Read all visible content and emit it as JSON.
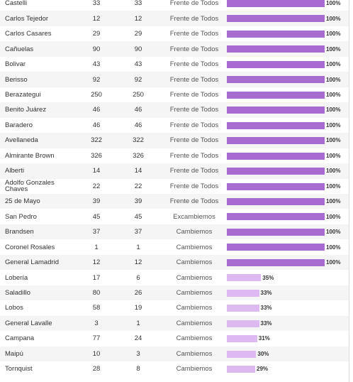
{
  "table": {
    "xlim": [
      0,
      100
    ],
    "rows": [
      {
        "name": "Castelli",
        "a": "33",
        "b": "33",
        "party": "Frente de Todos",
        "pct": 100,
        "pct_label": "100%",
        "color": "#a86bd0"
      },
      {
        "name": "Carlos Tejedor",
        "a": "12",
        "b": "12",
        "party": "Frente de Todos",
        "pct": 100,
        "pct_label": "100%",
        "color": "#a86bd0"
      },
      {
        "name": "Carlos Casares",
        "a": "29",
        "b": "29",
        "party": "Frente de Todos",
        "pct": 100,
        "pct_label": "100%",
        "color": "#a86bd0"
      },
      {
        "name": "Cañuelas",
        "a": "90",
        "b": "90",
        "party": "Frente de Todos",
        "pct": 100,
        "pct_label": "100%",
        "color": "#a86bd0"
      },
      {
        "name": "Bolivar",
        "a": "43",
        "b": "43",
        "party": "Frente de Todos",
        "pct": 100,
        "pct_label": "100%",
        "color": "#a86bd0"
      },
      {
        "name": "Berisso",
        "a": "92",
        "b": "92",
        "party": "Frente de Todos",
        "pct": 100,
        "pct_label": "100%",
        "color": "#a86bd0"
      },
      {
        "name": "Berazategui",
        "a": "250",
        "b": "250",
        "party": "Frente de Todos",
        "pct": 100,
        "pct_label": "100%",
        "color": "#a86bd0"
      },
      {
        "name": "Benito Juárez",
        "a": "46",
        "b": "46",
        "party": "Frente de Todos",
        "pct": 100,
        "pct_label": "100%",
        "color": "#a86bd0"
      },
      {
        "name": "Baradero",
        "a": "46",
        "b": "46",
        "party": "Frente de Todos",
        "pct": 100,
        "pct_label": "100%",
        "color": "#a86bd0"
      },
      {
        "name": "Avellaneda",
        "a": "322",
        "b": "322",
        "party": "Frente de Todos",
        "pct": 100,
        "pct_label": "100%",
        "color": "#a86bd0"
      },
      {
        "name": "Almirante Brown",
        "a": "326",
        "b": "326",
        "party": "Frente de Todos",
        "pct": 100,
        "pct_label": "100%",
        "color": "#a86bd0"
      },
      {
        "name": "Alberti",
        "a": "14",
        "b": "14",
        "party": "Frente de Todos",
        "pct": 100,
        "pct_label": "100%",
        "color": "#a86bd0"
      },
      {
        "name": "Adolfo Gonzales Chaves",
        "a": "22",
        "b": "22",
        "party": "Frente de Todos",
        "pct": 100,
        "pct_label": "100%",
        "color": "#a86bd0"
      },
      {
        "name": "25 de Mayo",
        "a": "39",
        "b": "39",
        "party": "Frente de Todos",
        "pct": 100,
        "pct_label": "100%",
        "color": "#a86bd0"
      },
      {
        "name": "San Pedro",
        "a": "45",
        "b": "45",
        "party": "Excambiemos",
        "pct": 100,
        "pct_label": "100%",
        "color": "#a86bd0"
      },
      {
        "name": "Brandsen",
        "a": "37",
        "b": "37",
        "party": "Cambiemos",
        "pct": 100,
        "pct_label": "100%",
        "color": "#a86bd0"
      },
      {
        "name": "Coronel Rosales",
        "a": "1",
        "b": "1",
        "party": "Cambiemos",
        "pct": 100,
        "pct_label": "100%",
        "color": "#a86bd0"
      },
      {
        "name": "General Lamadrid",
        "a": "12",
        "b": "12",
        "party": "Cambiemos",
        "pct": 100,
        "pct_label": "100%",
        "color": "#a86bd0"
      },
      {
        "name": "Lobería",
        "a": "17",
        "b": "6",
        "party": "Cambiemos",
        "pct": 35,
        "pct_label": "35%",
        "color": "#dcb9f0"
      },
      {
        "name": "Saladillo",
        "a": "80",
        "b": "26",
        "party": "Cambiemos",
        "pct": 33,
        "pct_label": "33%",
        "color": "#dcb9f0"
      },
      {
        "name": "Lobos",
        "a": "58",
        "b": "19",
        "party": "Cambiemos",
        "pct": 33,
        "pct_label": "33%",
        "color": "#dcb9f0"
      },
      {
        "name": "General Lavalle",
        "a": "3",
        "b": "1",
        "party": "Cambiemos",
        "pct": 33,
        "pct_label": "33%",
        "color": "#dcb9f0"
      },
      {
        "name": "Campana",
        "a": "77",
        "b": "24",
        "party": "Cambiemos",
        "pct": 31,
        "pct_label": "31%",
        "color": "#dcb9f0"
      },
      {
        "name": "Maipú",
        "a": "10",
        "b": "3",
        "party": "Cambiemos",
        "pct": 30,
        "pct_label": "30%",
        "color": "#dcb9f0"
      },
      {
        "name": "Tornquist",
        "a": "28",
        "b": "8",
        "party": "Cambiemos",
        "pct": 29,
        "pct_label": "29%",
        "color": "#dcb9f0"
      }
    ]
  }
}
